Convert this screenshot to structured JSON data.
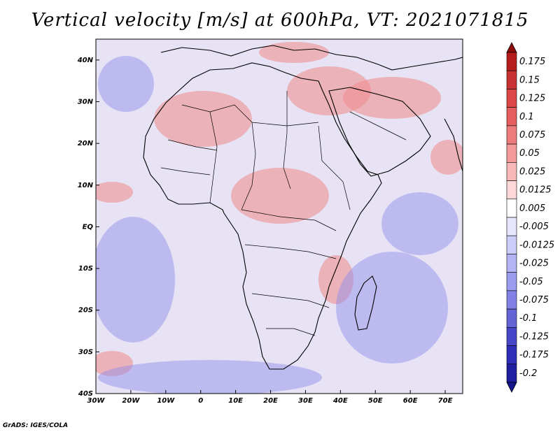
{
  "title": "Vertical velocity [m/s] at 600hPa, VT: 2021071815",
  "credit": "GrADS: IGES/COLA",
  "latitude_labels": [
    "40N",
    "30N",
    "20N",
    "10N",
    "EQ",
    "10S",
    "20S",
    "30S",
    "40S"
  ],
  "longitude_labels": [
    "30W",
    "20W",
    "10W",
    "0",
    "10E",
    "20E",
    "30E",
    "40E",
    "50E",
    "60E",
    "70E"
  ],
  "colorbar": {
    "labels": [
      "0.175",
      "0.15",
      "0.125",
      "0.1",
      "0.075",
      "0.05",
      "0.025",
      "0.0125",
      "0.005",
      "-0.005",
      "-0.0125",
      "-0.025",
      "-0.05",
      "-0.075",
      "-0.1",
      "-0.125",
      "-0.175",
      "-0.2"
    ],
    "colors": [
      "#b41c1c",
      "#c83232",
      "#dc4646",
      "#e65f5f",
      "#ee7c7c",
      "#f59a9a",
      "#fab9b9",
      "#fdd8d8",
      "#ffffff",
      "#e6e6ff",
      "#cdcdfa",
      "#b4b4f5",
      "#9b9bf0",
      "#8282e6",
      "#6464d7",
      "#4646c8",
      "#2d2db9",
      "#1e1ea0"
    ],
    "top_arrow_color": "#8c0c0c",
    "bottom_arrow_color": "#14148c"
  },
  "map": {
    "background_color": "#e7e2f4",
    "red_field_color": "#f08a8a",
    "blue_field_color": "#8a8aec",
    "coast_color": "#000000"
  }
}
